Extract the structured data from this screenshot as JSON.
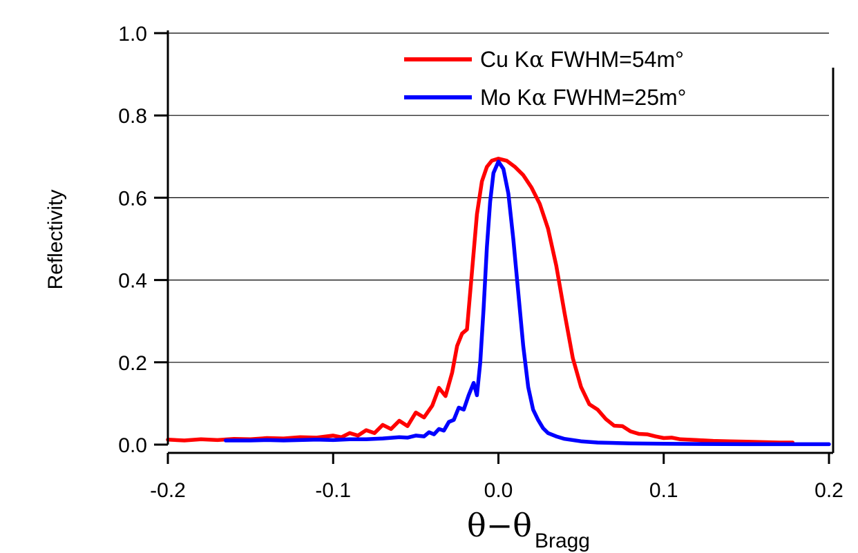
{
  "chart_data": {
    "type": "line",
    "xlabel": {
      "main": "θ−θ",
      "subscript": "Bragg"
    },
    "ylabel": "Reflectivity",
    "xlim": [
      -0.2,
      0.2
    ],
    "ylim": [
      0.0,
      1.0
    ],
    "x_ticks": [
      -0.2,
      -0.1,
      0.0,
      0.1,
      0.2
    ],
    "x_tick_labels": [
      "-0.2",
      "-0.1",
      "0.0",
      "0.1",
      "0.2"
    ],
    "y_ticks": [
      0.0,
      0.2,
      0.4,
      0.6,
      0.8,
      1.0
    ],
    "y_tick_labels": [
      "0.0",
      "0.2",
      "0.4",
      "0.6",
      "0.8",
      "1.0"
    ],
    "grid": "horizontal",
    "legend_position": "top-right",
    "series": [
      {
        "name": "Cu Kα FWHM=54m°",
        "label_prefix": "Cu K",
        "label_greek": "α",
        "label_suffix": " FWHM=54m°",
        "color": "#ff0000",
        "points": [
          [
            -0.2,
            0.012
          ],
          [
            -0.19,
            0.01
          ],
          [
            -0.18,
            0.013
          ],
          [
            -0.17,
            0.011
          ],
          [
            -0.16,
            0.014
          ],
          [
            -0.15,
            0.013
          ],
          [
            -0.14,
            0.016
          ],
          [
            -0.13,
            0.015
          ],
          [
            -0.12,
            0.018
          ],
          [
            -0.11,
            0.017
          ],
          [
            -0.1,
            0.022
          ],
          [
            -0.095,
            0.018
          ],
          [
            -0.09,
            0.028
          ],
          [
            -0.085,
            0.022
          ],
          [
            -0.08,
            0.035
          ],
          [
            -0.075,
            0.028
          ],
          [
            -0.07,
            0.048
          ],
          [
            -0.065,
            0.038
          ],
          [
            -0.06,
            0.058
          ],
          [
            -0.055,
            0.045
          ],
          [
            -0.05,
            0.078
          ],
          [
            -0.045,
            0.066
          ],
          [
            -0.04,
            0.095
          ],
          [
            -0.036,
            0.138
          ],
          [
            -0.032,
            0.118
          ],
          [
            -0.028,
            0.175
          ],
          [
            -0.025,
            0.24
          ],
          [
            -0.022,
            0.27
          ],
          [
            -0.019,
            0.28
          ],
          [
            -0.016,
            0.42
          ],
          [
            -0.013,
            0.56
          ],
          [
            -0.01,
            0.64
          ],
          [
            -0.007,
            0.675
          ],
          [
            -0.004,
            0.69
          ],
          [
            0.0,
            0.695
          ],
          [
            0.005,
            0.69
          ],
          [
            0.01,
            0.675
          ],
          [
            0.015,
            0.655
          ],
          [
            0.02,
            0.625
          ],
          [
            0.025,
            0.585
          ],
          [
            0.03,
            0.525
          ],
          [
            0.035,
            0.435
          ],
          [
            0.04,
            0.32
          ],
          [
            0.045,
            0.21
          ],
          [
            0.05,
            0.14
          ],
          [
            0.055,
            0.098
          ],
          [
            0.06,
            0.085
          ],
          [
            0.065,
            0.062
          ],
          [
            0.07,
            0.046
          ],
          [
            0.075,
            0.045
          ],
          [
            0.08,
            0.032
          ],
          [
            0.085,
            0.026
          ],
          [
            0.09,
            0.025
          ],
          [
            0.095,
            0.02
          ],
          [
            0.1,
            0.016
          ],
          [
            0.105,
            0.017
          ],
          [
            0.11,
            0.013
          ],
          [
            0.12,
            0.011
          ],
          [
            0.13,
            0.009
          ],
          [
            0.14,
            0.008
          ],
          [
            0.15,
            0.007
          ],
          [
            0.16,
            0.006
          ],
          [
            0.17,
            0.005
          ],
          [
            0.178,
            0.005
          ]
        ]
      },
      {
        "name": "Mo Kα FWHM=25m°",
        "label_prefix": "Mo K",
        "label_greek": "α",
        "label_suffix": " FWHM=25m°",
        "color": "#0000ff",
        "points": [
          [
            -0.165,
            0.01
          ],
          [
            -0.15,
            0.01
          ],
          [
            -0.14,
            0.011
          ],
          [
            -0.13,
            0.01
          ],
          [
            -0.12,
            0.011
          ],
          [
            -0.11,
            0.012
          ],
          [
            -0.1,
            0.011
          ],
          [
            -0.09,
            0.013
          ],
          [
            -0.08,
            0.013
          ],
          [
            -0.07,
            0.015
          ],
          [
            -0.06,
            0.018
          ],
          [
            -0.055,
            0.017
          ],
          [
            -0.05,
            0.022
          ],
          [
            -0.045,
            0.02
          ],
          [
            -0.042,
            0.03
          ],
          [
            -0.039,
            0.025
          ],
          [
            -0.036,
            0.038
          ],
          [
            -0.033,
            0.034
          ],
          [
            -0.03,
            0.055
          ],
          [
            -0.027,
            0.06
          ],
          [
            -0.024,
            0.09
          ],
          [
            -0.021,
            0.085
          ],
          [
            -0.018,
            0.12
          ],
          [
            -0.015,
            0.15
          ],
          [
            -0.013,
            0.12
          ],
          [
            -0.011,
            0.2
          ],
          [
            -0.009,
            0.33
          ],
          [
            -0.007,
            0.48
          ],
          [
            -0.005,
            0.59
          ],
          [
            -0.003,
            0.66
          ],
          [
            0.0,
            0.688
          ],
          [
            0.003,
            0.67
          ],
          [
            0.006,
            0.61
          ],
          [
            0.009,
            0.5
          ],
          [
            0.012,
            0.37
          ],
          [
            0.015,
            0.24
          ],
          [
            0.018,
            0.14
          ],
          [
            0.021,
            0.085
          ],
          [
            0.024,
            0.06
          ],
          [
            0.027,
            0.04
          ],
          [
            0.03,
            0.028
          ],
          [
            0.035,
            0.02
          ],
          [
            0.04,
            0.014
          ],
          [
            0.05,
            0.008
          ],
          [
            0.06,
            0.005
          ],
          [
            0.08,
            0.003
          ],
          [
            0.1,
            0.002
          ],
          [
            0.15,
            0.001
          ],
          [
            0.2,
            0.001
          ]
        ]
      }
    ]
  }
}
